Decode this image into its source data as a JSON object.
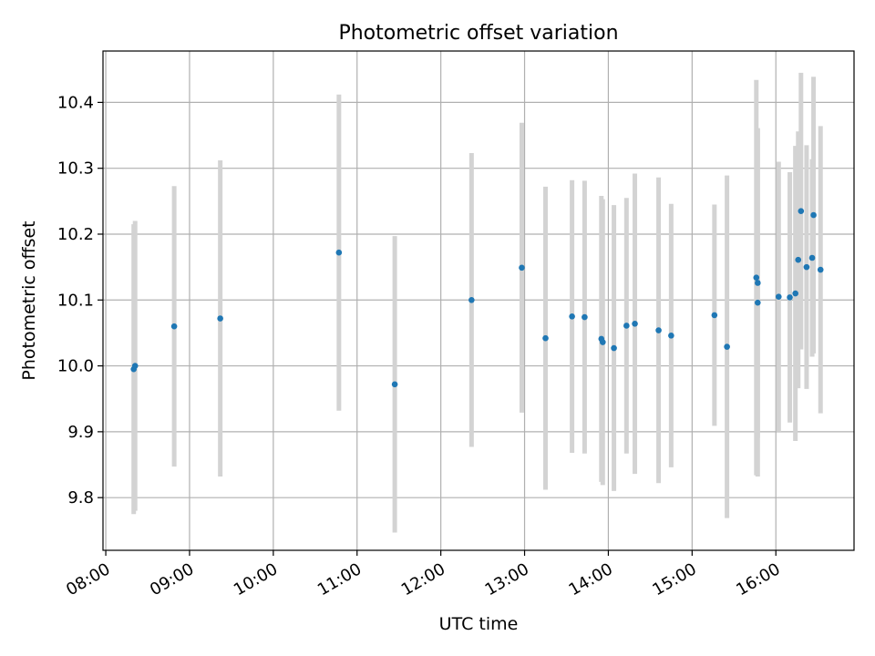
{
  "chart_data": {
    "type": "scatter",
    "title": "Photometric offset variation",
    "xlabel": "UTC time",
    "ylabel": "Photometric offset",
    "x_ticks": [
      "08:00",
      "09:00",
      "10:00",
      "11:00",
      "12:00",
      "13:00",
      "14:00",
      "15:00",
      "16:00"
    ],
    "y_ticks": [
      "9.8",
      "9.9",
      "10.0",
      "10.1",
      "10.2",
      "10.3",
      "10.4"
    ],
    "xlim": [
      "07:58",
      "16:56"
    ],
    "ylim": [
      9.72,
      10.478
    ],
    "grid": true,
    "colors": {
      "point": "#1f77b4",
      "errorbar": "#d3d3d3",
      "grid": "#b0b0b0"
    },
    "series": [
      {
        "points": [
          {
            "t": "08:20",
            "y": 9.995,
            "err": 0.22
          },
          {
            "t": "08:21",
            "y": 10.0,
            "err": 0.22
          },
          {
            "t": "08:49",
            "y": 10.06,
            "err": 0.213
          },
          {
            "t": "09:22",
            "y": 10.072,
            "err": 0.24
          },
          {
            "t": "10:47",
            "y": 10.172,
            "err": 0.24
          },
          {
            "t": "11:27",
            "y": 9.972,
            "err": 0.225
          },
          {
            "t": "12:22",
            "y": 10.1,
            "err": 0.223
          },
          {
            "t": "12:58",
            "y": 10.149,
            "err": 0.22
          },
          {
            "t": "13:15",
            "y": 10.042,
            "err": 0.23
          },
          {
            "t": "13:34",
            "y": 10.075,
            "err": 0.207
          },
          {
            "t": "13:43",
            "y": 10.074,
            "err": 0.207
          },
          {
            "t": "13:55",
            "y": 10.041,
            "err": 0.217
          },
          {
            "t": "13:56",
            "y": 10.036,
            "err": 0.217
          },
          {
            "t": "14:04",
            "y": 10.027,
            "err": 0.217
          },
          {
            "t": "14:13",
            "y": 10.061,
            "err": 0.194
          },
          {
            "t": "14:19",
            "y": 10.064,
            "err": 0.228
          },
          {
            "t": "14:36",
            "y": 10.054,
            "err": 0.232
          },
          {
            "t": "14:45",
            "y": 10.046,
            "err": 0.2
          },
          {
            "t": "15:16",
            "y": 10.077,
            "err": 0.168
          },
          {
            "t": "15:25",
            "y": 10.029,
            "err": 0.26
          },
          {
            "t": "15:46",
            "y": 10.134,
            "err": 0.3
          },
          {
            "t": "15:47",
            "y": 10.126,
            "err": 0.235
          },
          {
            "t": "15:47",
            "y": 10.096,
            "err": 0.264
          },
          {
            "t": "16:02",
            "y": 10.105,
            "err": 0.205
          },
          {
            "t": "16:10",
            "y": 10.104,
            "err": 0.19
          },
          {
            "t": "16:14",
            "y": 10.11,
            "err": 0.224
          },
          {
            "t": "16:16",
            "y": 10.161,
            "err": 0.195
          },
          {
            "t": "16:18",
            "y": 10.235,
            "err": 0.21
          },
          {
            "t": "16:22",
            "y": 10.15,
            "err": 0.185
          },
          {
            "t": "16:26",
            "y": 10.164,
            "err": 0.15
          },
          {
            "t": "16:27",
            "y": 10.229,
            "err": 0.21
          },
          {
            "t": "16:32",
            "y": 10.146,
            "err": 0.218
          }
        ]
      }
    ]
  }
}
